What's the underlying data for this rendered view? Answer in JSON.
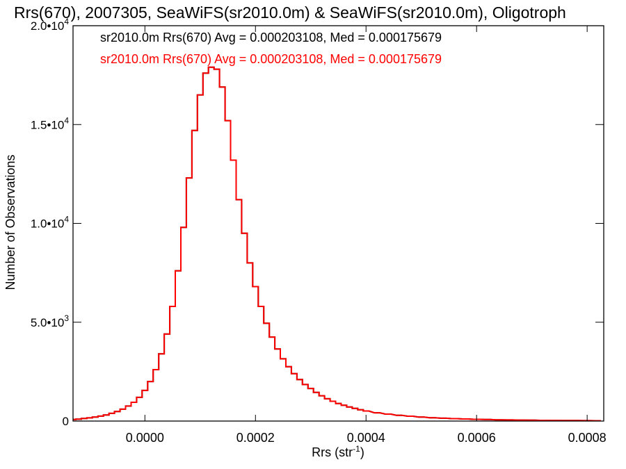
{
  "chart_data": {
    "type": "line",
    "title": "Rrs(670), 2007305, SeaWiFS(sr2010.0m) & SeaWiFS(sr2010.0m), Oligotroph",
    "xlabel": "Rrs (str",
    "xlabel_sup": "-1",
    "xlabel_tail": ")",
    "ylabel": "Number of Observations",
    "xlim": [
      -0.00013,
      0.00083
    ],
    "ylim": [
      0,
      20000
    ],
    "grid": false,
    "x_ticks": [
      {
        "value": 0.0,
        "label": "0.0000"
      },
      {
        "value": 0.0002,
        "label": "0.0002"
      },
      {
        "value": 0.0004,
        "label": "0.0004"
      },
      {
        "value": 0.0006,
        "label": "0.0006"
      },
      {
        "value": 0.0008,
        "label": "0.0008"
      }
    ],
    "y_ticks": [
      {
        "value": 0,
        "label": "0",
        "sup": ""
      },
      {
        "value": 5000,
        "label": "5.0•10",
        "sup": "3"
      },
      {
        "value": 10000,
        "label": "1.0•10",
        "sup": "4"
      },
      {
        "value": 15000,
        "label": "1.5•10",
        "sup": "4"
      },
      {
        "value": 20000,
        "label": "2.0•10",
        "sup": "4"
      }
    ],
    "legend": [
      {
        "text": "sr2010.0m Rrs(670) Avg = 0.000203108, Med = 0.000175679",
        "color": "#000000"
      },
      {
        "text": "sr2010.0m Rrs(670) Avg = 0.000203108, Med = 0.000175679",
        "color": "#ff0000"
      }
    ],
    "series": [
      {
        "color": "#000000",
        "x": [
          -0.00013,
          -0.00012,
          -0.00011,
          -0.0001,
          -9e-05,
          -8e-05,
          -7e-05,
          -6e-05,
          -5e-05,
          -4e-05,
          -3e-05,
          -2e-05,
          -1e-05,
          0.0,
          1e-05,
          2e-05,
          3e-05,
          4e-05,
          5e-05,
          6e-05,
          7e-05,
          8e-05,
          9e-05,
          0.0001,
          0.00011,
          0.00012,
          0.00013,
          0.00014,
          0.00015,
          0.00016,
          0.00017,
          0.00018,
          0.00019,
          0.0002,
          0.00021,
          0.00022,
          0.00023,
          0.00024,
          0.00025,
          0.00026,
          0.00027,
          0.00028,
          0.00029,
          0.0003,
          0.00031,
          0.00032,
          0.00033,
          0.00034,
          0.00035,
          0.00036,
          0.00037,
          0.00038,
          0.00039,
          0.0004,
          0.00042,
          0.00044,
          0.00046,
          0.00048,
          0.0005,
          0.00052,
          0.00054,
          0.00056,
          0.00058,
          0.0006,
          0.00062,
          0.00064,
          0.00066,
          0.00068,
          0.0007,
          0.00072,
          0.00074,
          0.00076,
          0.00078,
          0.0008,
          0.00082
        ],
        "y": [
          80,
          100,
          130,
          160,
          200,
          250,
          310,
          390,
          480,
          600,
          760,
          950,
          1200,
          1550,
          2000,
          2600,
          3400,
          4400,
          5800,
          7600,
          9800,
          12300,
          14700,
          16500,
          17600,
          17900,
          17800,
          16900,
          15200,
          13200,
          11200,
          9500,
          8000,
          6800,
          5800,
          4950,
          4250,
          3650,
          3150,
          2750,
          2400,
          2100,
          1850,
          1650,
          1450,
          1280,
          1130,
          1000,
          890,
          800,
          710,
          640,
          570,
          510,
          420,
          350,
          290,
          245,
          205,
          170,
          145,
          122,
          104,
          89,
          76,
          65,
          56,
          48,
          42,
          36,
          31,
          27,
          23,
          20,
          17
        ]
      },
      {
        "color": "#ff0000",
        "x": [
          -0.00013,
          -0.00012,
          -0.00011,
          -0.0001,
          -9e-05,
          -8e-05,
          -7e-05,
          -6e-05,
          -5e-05,
          -4e-05,
          -3e-05,
          -2e-05,
          -1e-05,
          0.0,
          1e-05,
          2e-05,
          3e-05,
          4e-05,
          5e-05,
          6e-05,
          7e-05,
          8e-05,
          9e-05,
          0.0001,
          0.00011,
          0.00012,
          0.00013,
          0.00014,
          0.00015,
          0.00016,
          0.00017,
          0.00018,
          0.00019,
          0.0002,
          0.00021,
          0.00022,
          0.00023,
          0.00024,
          0.00025,
          0.00026,
          0.00027,
          0.00028,
          0.00029,
          0.0003,
          0.00031,
          0.00032,
          0.00033,
          0.00034,
          0.00035,
          0.00036,
          0.00037,
          0.00038,
          0.00039,
          0.0004,
          0.00042,
          0.00044,
          0.00046,
          0.00048,
          0.0005,
          0.00052,
          0.00054,
          0.00056,
          0.00058,
          0.0006,
          0.00062,
          0.00064,
          0.00066,
          0.00068,
          0.0007,
          0.00072,
          0.00074,
          0.00076,
          0.00078,
          0.0008,
          0.00082
        ],
        "y": [
          80,
          100,
          130,
          160,
          200,
          250,
          310,
          390,
          480,
          600,
          760,
          950,
          1200,
          1550,
          2000,
          2600,
          3400,
          4400,
          5800,
          7600,
          9800,
          12300,
          14700,
          16500,
          17600,
          17900,
          17800,
          16900,
          15200,
          13200,
          11200,
          9500,
          8000,
          6800,
          5800,
          4950,
          4250,
          3650,
          3150,
          2750,
          2400,
          2100,
          1850,
          1650,
          1450,
          1280,
          1130,
          1000,
          890,
          800,
          710,
          640,
          570,
          510,
          420,
          350,
          290,
          245,
          205,
          170,
          145,
          122,
          104,
          89,
          76,
          65,
          56,
          48,
          42,
          36,
          31,
          27,
          23,
          20,
          17
        ]
      }
    ]
  }
}
